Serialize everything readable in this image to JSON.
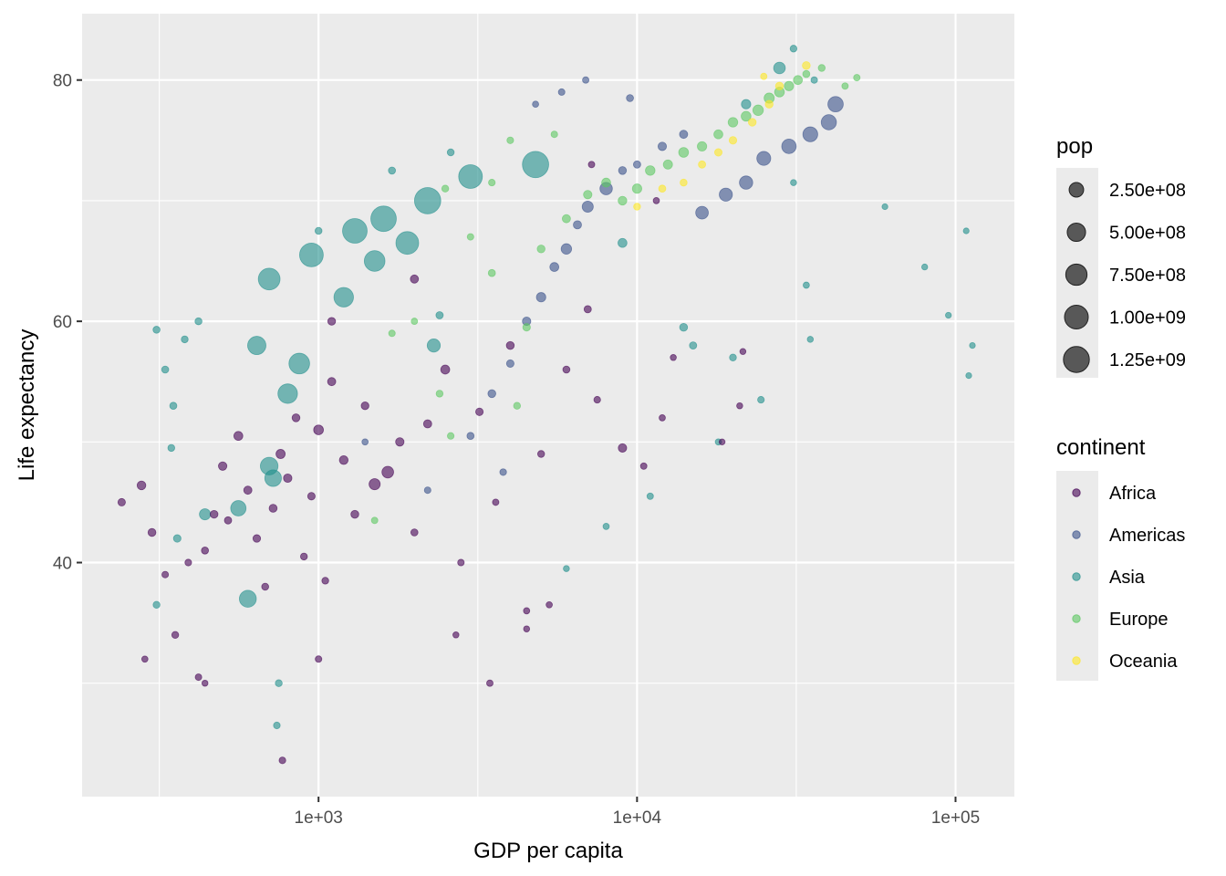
{
  "chart_data": {
    "type": "scatter",
    "title": "",
    "xlabel": "GDP per capita",
    "ylabel": "Life expectancy",
    "x_scale": "log10",
    "xlim": [
      181,
      153000
    ],
    "ylim": [
      20.6,
      85.5
    ],
    "x_ticks": [
      {
        "value": 1000,
        "label": "1e+03"
      },
      {
        "value": 10000,
        "label": "1e+04"
      },
      {
        "value": 100000,
        "label": "1e+05"
      }
    ],
    "x_minor_gridlines": [
      316.2,
      3162.3,
      31622.8
    ],
    "y_ticks": [
      {
        "value": 40,
        "label": "40"
      },
      {
        "value": 60,
        "label": "60"
      },
      {
        "value": 80,
        "label": "80"
      }
    ],
    "y_minor_gridlines": [
      30,
      50,
      70
    ],
    "grid": true,
    "point_alpha": 0.6,
    "size_legend": {
      "title": "pop",
      "placement": "right",
      "entries": [
        {
          "value": 250000000,
          "label": "2.50e+08"
        },
        {
          "value": 500000000,
          "label": "5.00e+08"
        },
        {
          "value": 750000000,
          "label": "7.50e+08"
        },
        {
          "value": 1000000000,
          "label": "1.00e+09"
        },
        {
          "value": 1250000000,
          "label": "1.25e+09"
        }
      ]
    },
    "color_legend": {
      "title": "continent",
      "placement": "right",
      "entries": [
        {
          "label": "Africa",
          "color": "#440154"
        },
        {
          "label": "Americas",
          "color": "#3B528B"
        },
        {
          "label": "Asia",
          "color": "#21908C"
        },
        {
          "label": "Europe",
          "color": "#5DC863"
        },
        {
          "label": "Oceania",
          "color": "#FDE725"
        }
      ]
    },
    "columns": [
      "gdp",
      "lifeExp",
      "pop",
      "continent"
    ],
    "points": [
      [
        241,
        45.0,
        14000000,
        "Africa"
      ],
      [
        278,
        46.4,
        35000000,
        "Africa"
      ],
      [
        300,
        42.5,
        20000000,
        "Africa"
      ],
      [
        285,
        32.0,
        3000000,
        "Africa"
      ],
      [
        330,
        39.0,
        5000000,
        "Africa"
      ],
      [
        355,
        34.0,
        8000000,
        "Africa"
      ],
      [
        390,
        40.0,
        6000000,
        "Africa"
      ],
      [
        420,
        30.5,
        5000000,
        "Africa"
      ],
      [
        440,
        41.0,
        10000000,
        "Africa"
      ],
      [
        470,
        44.0,
        18000000,
        "Africa"
      ],
      [
        500,
        48.0,
        30000000,
        "Africa"
      ],
      [
        520,
        43.5,
        12000000,
        "Africa"
      ],
      [
        560,
        50.5,
        40000000,
        "Africa"
      ],
      [
        600,
        46.0,
        25000000,
        "Africa"
      ],
      [
        640,
        42.0,
        16000000,
        "Africa"
      ],
      [
        680,
        38.0,
        9000000,
        "Africa"
      ],
      [
        720,
        44.5,
        22000000,
        "Africa"
      ],
      [
        760,
        49.0,
        45000000,
        "Africa"
      ],
      [
        800,
        47.0,
        30000000,
        "Africa"
      ],
      [
        850,
        52.0,
        20000000,
        "Africa"
      ],
      [
        900,
        40.5,
        8000000,
        "Africa"
      ],
      [
        950,
        45.5,
        15000000,
        "Africa"
      ],
      [
        1000,
        51.0,
        60000000,
        "Africa"
      ],
      [
        1050,
        38.5,
        7000000,
        "Africa"
      ],
      [
        1100,
        55.0,
        25000000,
        "Africa"
      ],
      [
        1200,
        48.5,
        35000000,
        "Africa"
      ],
      [
        1300,
        44.0,
        20000000,
        "Africa"
      ],
      [
        1400,
        53.0,
        18000000,
        "Africa"
      ],
      [
        1500,
        46.5,
        100000000,
        "Africa"
      ],
      [
        1650,
        47.5,
        120000000,
        "Africa"
      ],
      [
        1800,
        50.0,
        30000000,
        "Africa"
      ],
      [
        2000,
        42.5,
        10000000,
        "Africa"
      ],
      [
        2200,
        51.5,
        25000000,
        "Africa"
      ],
      [
        2500,
        56.0,
        40000000,
        "Africa"
      ],
      [
        2800,
        40.0,
        5000000,
        "Africa"
      ],
      [
        3200,
        52.5,
        15000000,
        "Africa"
      ],
      [
        3600,
        45.0,
        4000000,
        "Africa"
      ],
      [
        4000,
        58.0,
        20000000,
        "Africa"
      ],
      [
        4500,
        36.0,
        3000000,
        "Africa"
      ],
      [
        5000,
        49.0,
        8000000,
        "Africa"
      ],
      [
        6000,
        56.0,
        10000000,
        "Africa"
      ],
      [
        7000,
        61.0,
        12000000,
        "Africa"
      ],
      [
        7500,
        53.5,
        6000000,
        "Africa"
      ],
      [
        9000,
        49.5,
        30000000,
        "Africa"
      ],
      [
        10500,
        48.0,
        4000000,
        "Africa"
      ],
      [
        12000,
        52.0,
        3000000,
        "Africa"
      ],
      [
        13000,
        57.0,
        2000000,
        "Africa"
      ],
      [
        18500,
        50.0,
        1500000,
        "Africa"
      ],
      [
        21000,
        53.0,
        2000000,
        "Africa"
      ],
      [
        21500,
        57.5,
        1800000,
        "Africa"
      ],
      [
        3450,
        30.0,
        4000000,
        "Africa"
      ],
      [
        770,
        23.6,
        6000000,
        "Africa"
      ],
      [
        1000,
        32.0,
        5000000,
        "Africa"
      ],
      [
        440,
        30.0,
        2000000,
        "Africa"
      ],
      [
        4500,
        34.5,
        2000000,
        "Africa"
      ],
      [
        5300,
        36.5,
        3000000,
        "Africa"
      ],
      [
        2700,
        34.0,
        2000000,
        "Africa"
      ],
      [
        1100,
        60.0,
        18000000,
        "Africa"
      ],
      [
        2000,
        63.5,
        25000000,
        "Africa"
      ],
      [
        7200,
        73.0,
        4000000,
        "Africa"
      ],
      [
        11500,
        70.0,
        3000000,
        "Africa"
      ],
      [
        3000,
        50.5,
        10000000,
        "Americas"
      ],
      [
        3500,
        54.0,
        20000000,
        "Americas"
      ],
      [
        4000,
        56.5,
        15000000,
        "Americas"
      ],
      [
        4500,
        60.0,
        30000000,
        "Americas"
      ],
      [
        5000,
        62.0,
        50000000,
        "Americas"
      ],
      [
        5500,
        64.5,
        40000000,
        "Americas"
      ],
      [
        6000,
        66.0,
        80000000,
        "Americas"
      ],
      [
        6500,
        68.0,
        25000000,
        "Americas"
      ],
      [
        7000,
        69.5,
        100000000,
        "Americas"
      ],
      [
        8000,
        71.0,
        150000000,
        "Americas"
      ],
      [
        9000,
        72.5,
        20000000,
        "Americas"
      ],
      [
        10000,
        73.0,
        12000000,
        "Americas"
      ],
      [
        12000,
        74.5,
        30000000,
        "Americas"
      ],
      [
        14000,
        75.5,
        25000000,
        "Americas"
      ],
      [
        16000,
        69.0,
        160000000,
        "Americas"
      ],
      [
        19000,
        70.5,
        180000000,
        "Americas"
      ],
      [
        22000,
        71.5,
        190000000,
        "Americas"
      ],
      [
        25000,
        73.5,
        220000000,
        "Americas"
      ],
      [
        30000,
        74.5,
        250000000,
        "Americas"
      ],
      [
        35000,
        75.5,
        270000000,
        "Americas"
      ],
      [
        40000,
        76.5,
        290000000,
        "Americas"
      ],
      [
        42000,
        78.0,
        300000000,
        "Americas"
      ],
      [
        4800,
        78.0,
        3000000,
        "Americas"
      ],
      [
        5800,
        79.0,
        5000000,
        "Americas"
      ],
      [
        6900,
        80.0,
        4000000,
        "Americas"
      ],
      [
        9500,
        78.5,
        10000000,
        "Americas"
      ],
      [
        2200,
        46.0,
        5000000,
        "Americas"
      ],
      [
        3800,
        47.5,
        6000000,
        "Americas"
      ],
      [
        1400,
        50.0,
        3000000,
        "Americas"
      ],
      [
        310,
        36.5,
        8000000,
        "Asia"
      ],
      [
        310,
        59.3,
        9000000,
        "Asia"
      ],
      [
        330,
        56.0,
        10000000,
        "Asia"
      ],
      [
        345,
        49.5,
        8000000,
        "Asia"
      ],
      [
        350,
        53.0,
        10000000,
        "Asia"
      ],
      [
        360,
        42.0,
        15000000,
        "Asia"
      ],
      [
        380,
        58.5,
        8000000,
        "Asia"
      ],
      [
        420,
        60.0,
        9000000,
        "Asia"
      ],
      [
        440,
        44.0,
        100000000,
        "Asia"
      ],
      [
        560,
        44.5,
        300000000,
        "Asia"
      ],
      [
        600,
        37.0,
        400000000,
        "Asia"
      ],
      [
        640,
        58.0,
        500000000,
        "Asia"
      ],
      [
        700,
        63.5,
        800000000,
        "Asia"
      ],
      [
        700,
        48.0,
        450000000,
        "Asia"
      ],
      [
        720,
        47.0,
        380000000,
        "Asia"
      ],
      [
        800,
        54.0,
        600000000,
        "Asia"
      ],
      [
        870,
        56.5,
        700000000,
        "Asia"
      ],
      [
        950,
        65.5,
        1000000000,
        "Asia"
      ],
      [
        1300,
        67.5,
        1100000000,
        "Asia"
      ],
      [
        1600,
        68.5,
        1200000000,
        "Asia"
      ],
      [
        2200,
        70.0,
        1300000000,
        "Asia"
      ],
      [
        3000,
        72.0,
        1000000000,
        "Asia"
      ],
      [
        4800,
        73.0,
        1300000000,
        "Asia"
      ],
      [
        2300,
        58.0,
        180000000,
        "Asia"
      ],
      [
        1200,
        62.0,
        600000000,
        "Asia"
      ],
      [
        1500,
        65.0,
        700000000,
        "Asia"
      ],
      [
        1900,
        66.5,
        900000000,
        "Asia"
      ],
      [
        2600,
        74.0,
        8000000,
        "Asia"
      ],
      [
        2400,
        60.5,
        12000000,
        "Asia"
      ],
      [
        1700,
        72.5,
        10000000,
        "Asia"
      ],
      [
        1000,
        67.5,
        8000000,
        "Asia"
      ],
      [
        740,
        26.5,
        6000000,
        "Asia"
      ],
      [
        750,
        30.0,
        8000000,
        "Asia"
      ],
      [
        9000,
        66.5,
        40000000,
        "Asia"
      ],
      [
        14000,
        59.5,
        20000000,
        "Asia"
      ],
      [
        15000,
        58.0,
        12000000,
        "Asia"
      ],
      [
        20000,
        57.0,
        8000000,
        "Asia"
      ],
      [
        24500,
        53.5,
        6000000,
        "Asia"
      ],
      [
        34000,
        63.0,
        3000000,
        "Asia"
      ],
      [
        35000,
        58.5,
        2000000,
        "Asia"
      ],
      [
        60000,
        69.5,
        1000000,
        "Asia"
      ],
      [
        80000,
        64.5,
        1500000,
        "Asia"
      ],
      [
        95000,
        60.5,
        1200000,
        "Asia"
      ],
      [
        110000,
        55.5,
        1000000,
        "Asia"
      ],
      [
        113000,
        58.0,
        900000,
        "Asia"
      ],
      [
        108000,
        67.5,
        800000,
        "Asia"
      ],
      [
        31000,
        71.5,
        2000000,
        "Asia"
      ],
      [
        18000,
        50.0,
        3000000,
        "Asia"
      ],
      [
        11000,
        45.5,
        4000000,
        "Asia"
      ],
      [
        8000,
        43.0,
        3000000,
        "Asia"
      ],
      [
        6000,
        39.5,
        2000000,
        "Asia"
      ],
      [
        28000,
        81.0,
        120000000,
        "Asia"
      ],
      [
        31000,
        82.6,
        7000000,
        "Asia"
      ],
      [
        22000,
        78.0,
        50000000,
        "Asia"
      ],
      [
        36000,
        80.0,
        5000000,
        "Asia"
      ],
      [
        2500,
        71.0,
        8000000,
        "Europe"
      ],
      [
        3000,
        67.0,
        5000000,
        "Europe"
      ],
      [
        4000,
        75.0,
        6000000,
        "Europe"
      ],
      [
        4500,
        59.5,
        15000000,
        "Europe"
      ],
      [
        3500,
        64.0,
        10000000,
        "Europe"
      ],
      [
        5000,
        66.0,
        20000000,
        "Europe"
      ],
      [
        6000,
        68.5,
        25000000,
        "Europe"
      ],
      [
        7000,
        70.5,
        30000000,
        "Europe"
      ],
      [
        8000,
        71.5,
        40000000,
        "Europe"
      ],
      [
        9000,
        70.0,
        35000000,
        "Europe"
      ],
      [
        10000,
        71.0,
        50000000,
        "Europe"
      ],
      [
        11000,
        72.5,
        55000000,
        "Europe"
      ],
      [
        12500,
        73.0,
        45000000,
        "Europe"
      ],
      [
        14000,
        74.0,
        60000000,
        "Europe"
      ],
      [
        16000,
        74.5,
        50000000,
        "Europe"
      ],
      [
        18000,
        75.5,
        40000000,
        "Europe"
      ],
      [
        20000,
        76.5,
        55000000,
        "Europe"
      ],
      [
        22000,
        77.0,
        60000000,
        "Europe"
      ],
      [
        24000,
        77.5,
        80000000,
        "Europe"
      ],
      [
        26000,
        78.5,
        70000000,
        "Europe"
      ],
      [
        28000,
        79.0,
        60000000,
        "Europe"
      ],
      [
        30000,
        79.5,
        50000000,
        "Europe"
      ],
      [
        32000,
        80.0,
        40000000,
        "Europe"
      ],
      [
        34000,
        80.5,
        10000000,
        "Europe"
      ],
      [
        38000,
        81.0,
        8000000,
        "Europe"
      ],
      [
        45000,
        79.5,
        4000000,
        "Europe"
      ],
      [
        49000,
        80.2,
        4500000,
        "Europe"
      ],
      [
        1700,
        59.0,
        5000000,
        "Europe"
      ],
      [
        2000,
        60.0,
        4000000,
        "Europe"
      ],
      [
        2400,
        54.0,
        8000000,
        "Europe"
      ],
      [
        2600,
        50.5,
        6000000,
        "Europe"
      ],
      [
        1500,
        43.5,
        4000000,
        "Europe"
      ],
      [
        4200,
        53.0,
        8000000,
        "Europe"
      ],
      [
        5500,
        75.5,
        5000000,
        "Europe"
      ],
      [
        3500,
        71.5,
        6000000,
        "Europe"
      ],
      [
        10000,
        69.5,
        8000000,
        "Oceania"
      ],
      [
        12000,
        71.0,
        10000000,
        "Oceania"
      ],
      [
        14000,
        71.5,
        9000000,
        "Oceania"
      ],
      [
        16000,
        73.0,
        12000000,
        "Oceania"
      ],
      [
        18000,
        74.0,
        14000000,
        "Oceania"
      ],
      [
        20000,
        75.0,
        16000000,
        "Oceania"
      ],
      [
        23000,
        76.5,
        18000000,
        "Oceania"
      ],
      [
        26000,
        78.0,
        19000000,
        "Oceania"
      ],
      [
        28000,
        79.5,
        20000000,
        "Oceania"
      ],
      [
        34000,
        81.2,
        20000000,
        "Oceania"
      ],
      [
        25000,
        80.3,
        4000000,
        "Oceania"
      ]
    ]
  }
}
